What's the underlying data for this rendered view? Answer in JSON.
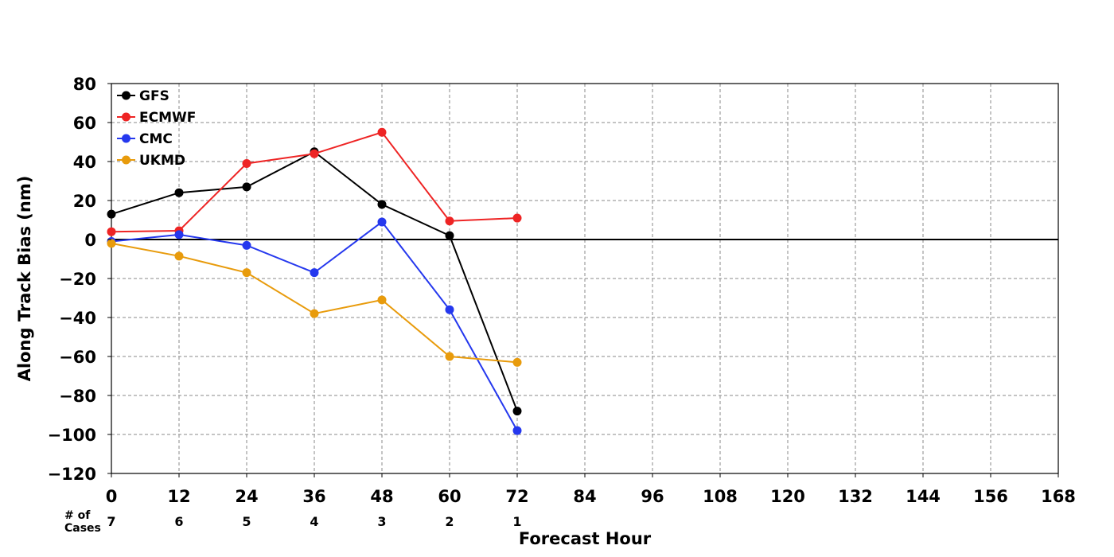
{
  "chart_data": {
    "type": "line",
    "title": "",
    "xlabel": "Forecast Hour",
    "ylabel": "Along Track Bias (nm)",
    "xlim": [
      0,
      168
    ],
    "ylim": [
      -120,
      80
    ],
    "x_ticks": [
      "0",
      "12",
      "24",
      "36",
      "48",
      "60",
      "72",
      "84",
      "96",
      "108",
      "120",
      "132",
      "144",
      "156",
      "168"
    ],
    "y_ticks": [
      "80",
      "60",
      "40",
      "20",
      "0",
      "−20",
      "−40",
      "−60",
      "−80",
      "−100",
      "−120"
    ],
    "grid": true,
    "legend_position": "top-left",
    "x": [
      0,
      12,
      24,
      36,
      48,
      60,
      72
    ],
    "series": [
      {
        "name": "GFS",
        "color": "#000000",
        "values": [
          13,
          24,
          27,
          45,
          18,
          2,
          -88
        ]
      },
      {
        "name": "ECMWF",
        "color": "#ee2424",
        "values": [
          4,
          4.5,
          39,
          44,
          55,
          9.5,
          11
        ]
      },
      {
        "name": "CMC",
        "color": "#2538ee",
        "values": [
          -1,
          2.5,
          -3,
          -17,
          9,
          -36,
          -98
        ]
      },
      {
        "name": "UKMD",
        "color": "#e89b0c",
        "values": [
          -2,
          -8.5,
          -17,
          -38,
          -31,
          -60,
          -63
        ]
      }
    ],
    "cases": {
      "label_line1": "# of",
      "label_line2": "Cases",
      "values": [
        "7",
        "6",
        "5",
        "4",
        "3",
        "2",
        "1"
      ]
    }
  }
}
